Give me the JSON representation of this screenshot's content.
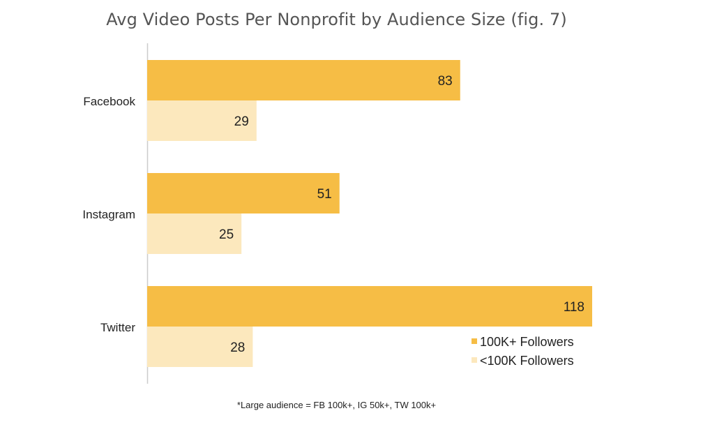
{
  "chart_data": {
    "type": "bar",
    "orientation": "horizontal",
    "title": "Avg Video Posts Per Nonprofit by Audience Size (fig. 7)",
    "categories": [
      "Facebook",
      "Instagram",
      "Twitter"
    ],
    "series": [
      {
        "name": "100K+ Followers",
        "values": [
          83,
          51,
          118
        ],
        "color": "#f6bd45"
      },
      {
        "name": "<100K Followers",
        "values": [
          29,
          25,
          28
        ],
        "color": "#fce8bd"
      }
    ],
    "xlim": [
      0,
      118
    ],
    "grid": false,
    "data_labels": true,
    "legend_position": "bottom-right",
    "footnote": "*Large audience = FB 100k+, IG 50k+, TW 100k+"
  }
}
